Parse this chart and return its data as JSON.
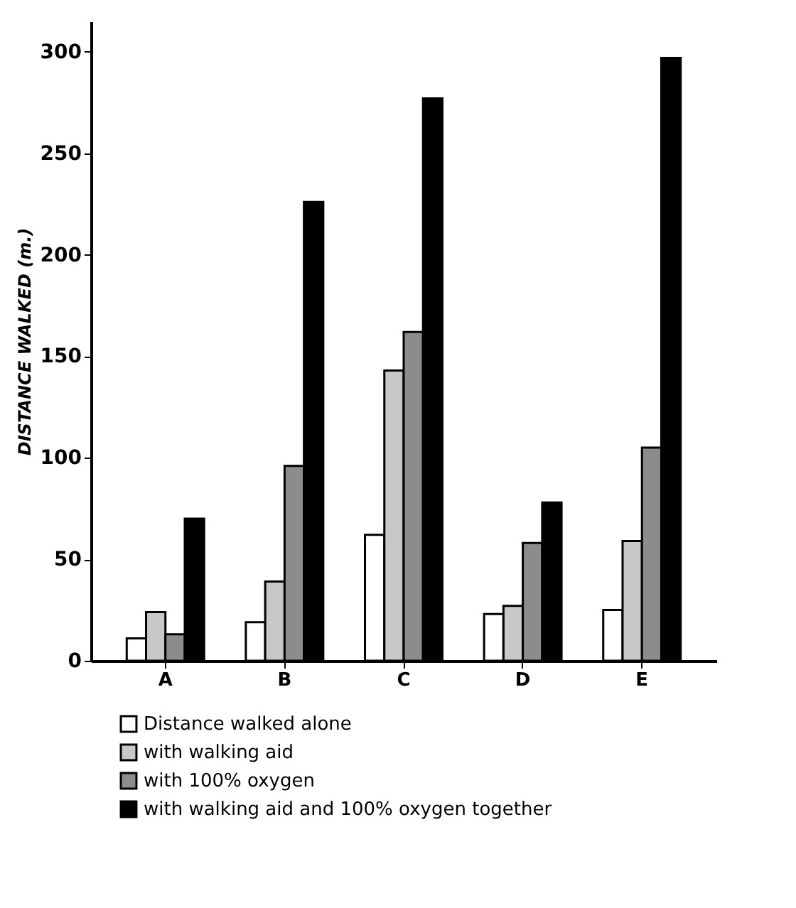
{
  "chart_data": {
    "type": "bar",
    "ylabel": "DISTANCE WALKED (m.)",
    "categories": [
      "A",
      "B",
      "C",
      "D",
      "E"
    ],
    "series": [
      {
        "name": "Distance walked alone",
        "color": "#ffffff",
        "values": [
          11,
          19,
          62,
          23,
          25
        ]
      },
      {
        "name": "with walking aid",
        "color": "#c8c8c8",
        "values": [
          24,
          39,
          143,
          27,
          59
        ]
      },
      {
        "name": "with 100% oxygen",
        "color": "#8c8c8c",
        "values": [
          13,
          96,
          162,
          58,
          105
        ]
      },
      {
        "name": "with walking aid and 100% oxygen together",
        "color": "#000000",
        "values": [
          70,
          226,
          277,
          78,
          297
        ]
      }
    ],
    "ylim": [
      0,
      315
    ],
    "yticks": [
      0,
      50,
      100,
      150,
      200,
      250,
      300
    ],
    "grid": false,
    "legend": "bottom left"
  }
}
